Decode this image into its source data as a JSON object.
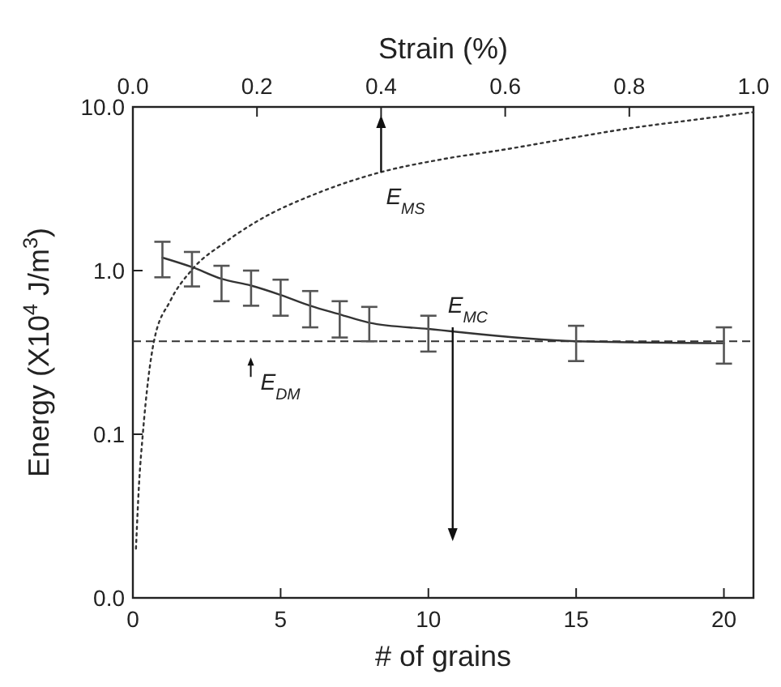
{
  "chart_data": {
    "type": "line",
    "xlabel": "# of grains",
    "x2label": "Strain (%)",
    "ylabel": "Energy (X10$^{4}$ J/m$^{3}$)",
    "xlim": [
      0,
      21
    ],
    "xticks": [
      0,
      5,
      10,
      15,
      20
    ],
    "x2lim": [
      0,
      1
    ],
    "x2ticks": [
      {
        "value": 0,
        "label": "0.0"
      },
      0.2,
      0.4,
      0.6,
      0.8,
      {
        "value": 1,
        "label": "1.0"
      }
    ],
    "log": "y",
    "ylim": [
      0.01,
      10
    ],
    "yticks": [
      {
        "value": 0.01,
        "label": "0.0"
      },
      0.1,
      {
        "value": 1,
        "label": "1.0"
      },
      {
        "value": 10,
        "label": "10.0"
      }
    ],
    "grid": false,
    "marker": "none",
    "series": [
      {
        "name": "E$_{MC}$",
        "color": "#333333",
        "line_style": "solid",
        "x": [
          1,
          2,
          3,
          4,
          5,
          6,
          7,
          8,
          10,
          15,
          20
        ],
        "values": [
          1.2,
          1.05,
          0.89,
          0.81,
          0.71,
          0.61,
          0.54,
          0.48,
          0.44,
          0.37,
          0.36
        ],
        "errors": [
          [
            0.91,
            1.5
          ],
          [
            0.8,
            1.3
          ],
          [
            0.65,
            1.07
          ],
          [
            0.61,
            1.0
          ],
          [
            0.53,
            0.88
          ],
          [
            0.45,
            0.75
          ],
          [
            0.39,
            0.65
          ],
          [
            0.37,
            0.6
          ],
          [
            0.32,
            0.53
          ],
          [
            0.28,
            0.46
          ],
          [
            0.27,
            0.45
          ]
        ]
      },
      {
        "name": "E$_{MS}$",
        "color": "#333333",
        "line_style": "dotted",
        "axis": "x2",
        "x": [
          0.005,
          0.01,
          0.016,
          0.034,
          0.06,
          0.094,
          0.15,
          0.2,
          0.3,
          0.4,
          0.5,
          0.6,
          0.7,
          0.8,
          0.9,
          1.0
        ],
        "values": [
          0.02,
          0.05,
          0.1,
          0.37,
          0.65,
          1.0,
          1.5,
          2.0,
          3.0,
          4.0,
          4.8,
          5.5,
          6.4,
          7.4,
          8.3,
          9.3
        ]
      }
    ],
    "ref_lines": [
      {
        "axis": "y",
        "value": 0.37,
        "label": "E$_{DM}$",
        "line_style": "dashed",
        "color": "#333333"
      }
    ]
  }
}
